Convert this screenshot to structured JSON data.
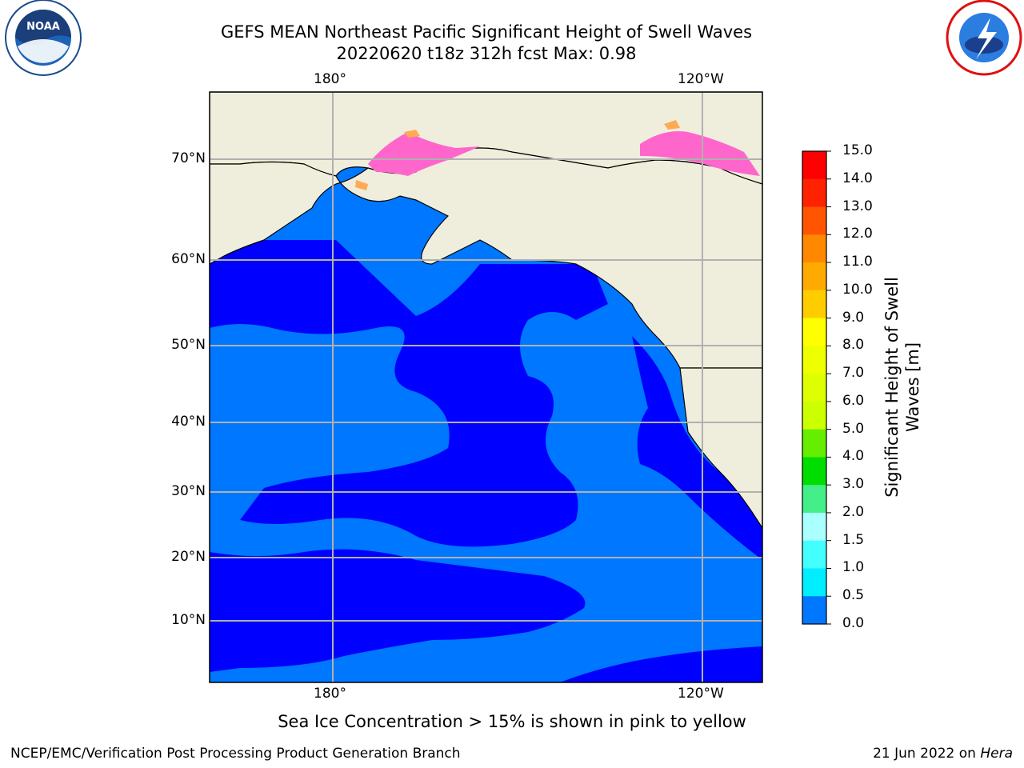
{
  "title_line1": "GEFS MEAN Northeast Pacific Significant Height of Swell Waves",
  "title_line2": "20220620 t18z 312h fcst   Max: 0.98",
  "lon_labels": [
    "180°",
    "120°W"
  ],
  "lat_labels": [
    "70°N",
    "60°N",
    "50°N",
    "40°N",
    "30°N",
    "20°N",
    "10°N"
  ],
  "colorbar": {
    "title_line1": "Significant Height of Swell",
    "title_line2": "Waves [m]",
    "ticks": [
      "15.0",
      "14.0",
      "13.0",
      "12.0",
      "11.0",
      "10.0",
      "9.0",
      "8.0",
      "7.0",
      "6.0",
      "5.0",
      "4.0",
      "3.0",
      "2.0",
      "1.5",
      "1.0",
      "0.5",
      "0.0"
    ],
    "colors": [
      "#ff0000",
      "#ff2200",
      "#ff5500",
      "#ff8800",
      "#ffaa00",
      "#ffcc00",
      "#ffff00",
      "#eeff00",
      "#ddff00",
      "#ccff00",
      "#66ee00",
      "#00dd00",
      "#44ee88",
      "#aaffff",
      "#44ffff",
      "#00eeff",
      "#0077ff",
      "#0000ff"
    ]
  },
  "map_colors": {
    "land": "#efeedc",
    "ocean_low": "#0000ff",
    "ocean_mid": "#0077ff",
    "ice": "#ff66cc",
    "grid": "#b0b0b0"
  },
  "caption": "Sea Ice Concentration > 15% is shown in pink to yellow",
  "footer_left": "NCEP/EMC/Verification Post Processing Product Generation Branch",
  "footer_date": "21 Jun 2022 on",
  "footer_host": "Hera",
  "logos": {
    "left": "NOAA",
    "right": "NATIONAL WEATHER SERVICE"
  }
}
